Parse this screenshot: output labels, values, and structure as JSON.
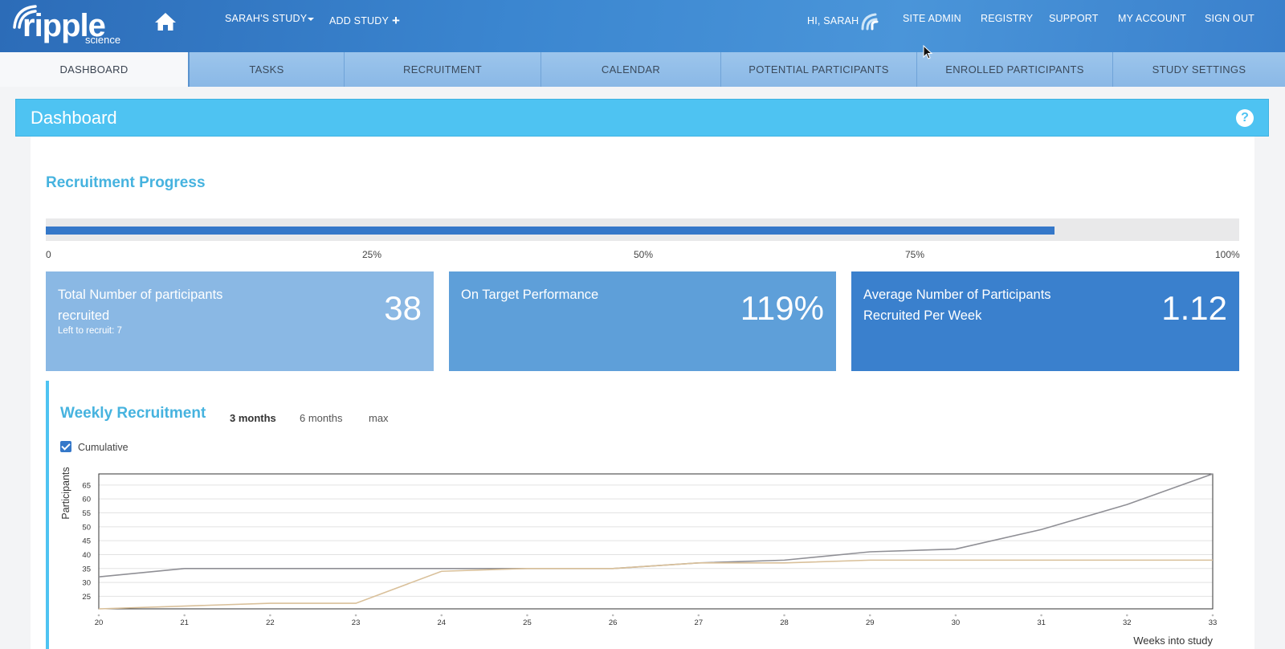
{
  "brand": {
    "name": "ripple",
    "sub": "science"
  },
  "header": {
    "study_menu": "SARAH'S STUDY",
    "add_study": "ADD STUDY",
    "greeting": "HI, SARAH",
    "links": [
      "SITE ADMIN",
      "REGISTRY",
      "SUPPORT",
      "MY ACCOUNT",
      "SIGN OUT"
    ]
  },
  "tabs": [
    "DASHBOARD",
    "TASKS",
    "RECRUITMENT",
    "CALENDAR",
    "POTENTIAL PARTICIPANTS",
    "ENROLLED PARTICIPANTS",
    "STUDY SETTINGS"
  ],
  "active_tab": "DASHBOARD",
  "page_title": "Dashboard",
  "help_icon": "?",
  "recruitment_progress": {
    "title": "Recruitment Progress",
    "progress_fraction": 0.845,
    "ticks": [
      "0",
      "25%",
      "50%",
      "75%",
      "100%"
    ]
  },
  "cards": [
    {
      "label": "Total Number of participants recruited",
      "value": "38",
      "sub": "Left to recruit: 7"
    },
    {
      "label": "On Target Performance",
      "value": "119%"
    },
    {
      "label": "Average Number of Participants Recruited Per Week",
      "value": "1.12"
    }
  ],
  "weekly": {
    "title": "Weekly Recruitment",
    "ranges": [
      "3 months",
      "6 months",
      "max"
    ],
    "selected_range": "3 months",
    "cumulative_label": "Cumulative",
    "cumulative_checked": true
  },
  "colors": {
    "topbar": "#3a80cc",
    "accent": "#4ec3f2",
    "progress": "#3578c9",
    "series_target": "#8f8f95",
    "series_actual": "#d9c09a"
  },
  "chart_data": {
    "type": "line",
    "ylabel": "Participants",
    "xlabel": "Weeks into study",
    "x": [
      20,
      21,
      22,
      23,
      24,
      25,
      26,
      27,
      28,
      29,
      30,
      31,
      32,
      33
    ],
    "xlim": [
      20,
      33
    ],
    "ylim": [
      20.5,
      69
    ],
    "yticks": [
      25,
      30,
      35,
      40,
      45,
      50,
      55,
      60,
      65
    ],
    "grid": true,
    "series": [
      {
        "values": [
          32,
          35,
          35,
          35,
          35,
          35,
          35,
          37,
          38,
          41,
          42,
          49,
          58,
          69
        ]
      },
      {
        "values": [
          20.5,
          21.5,
          22.5,
          22.5,
          34,
          35,
          35,
          37,
          37,
          38,
          38,
          38,
          38,
          38
        ]
      }
    ]
  }
}
